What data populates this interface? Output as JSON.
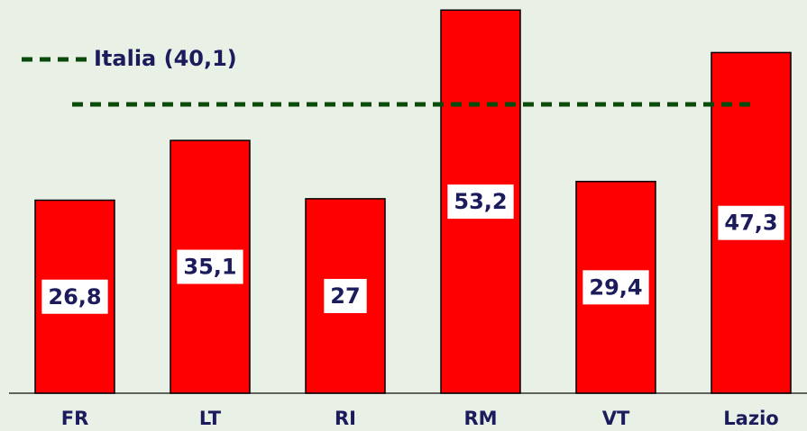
{
  "chart_data": {
    "type": "bar",
    "categories": [
      "FR",
      "LT",
      "RI",
      "RM",
      "VT",
      "Lazio"
    ],
    "values": [
      26.8,
      35.1,
      27,
      53.2,
      29.4,
      47.3
    ],
    "value_labels": [
      "26,8",
      "35,1",
      "27",
      "53,2",
      "29,4",
      "47,3"
    ],
    "color": "#ff0000",
    "ylim": [
      0,
      54.6
    ],
    "reference": {
      "label": "Italia (40,1)",
      "value": 40.1,
      "color": "#0a4a0a"
    }
  }
}
